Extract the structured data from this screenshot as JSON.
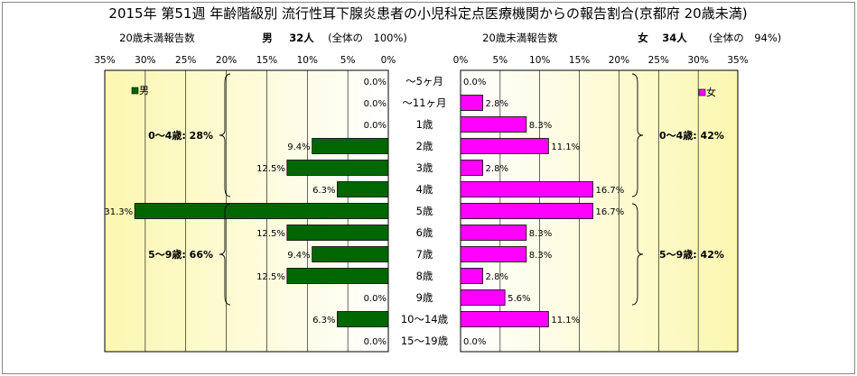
{
  "chart_data": {
    "type": "bar",
    "orientation": "horizontal-butterfly",
    "title": "2015年 第51週 年齢階級別 流行性耳下腺炎患者の小児科定点医療機関からの報告割合(京都府 20歳未満)",
    "categories": [
      "～5ヶ月",
      "～11ヶ月",
      "1歳",
      "2歳",
      "3歳",
      "4歳",
      "5歳",
      "6歳",
      "7歳",
      "8歳",
      "9歳",
      "10～14歳",
      "15～19歳"
    ],
    "xlim": [
      0,
      35
    ],
    "x_ticks": [
      "35%",
      "30%",
      "25%",
      "20%",
      "15%",
      "10%",
      "5%",
      "0%"
    ],
    "x_ticks_right": [
      "0%",
      "5%",
      "10%",
      "15%",
      "20%",
      "25%",
      "30%",
      "35%"
    ],
    "left_panel": {
      "header_label": "20歳未満報告数",
      "header_gender": "男",
      "header_count": "32人",
      "header_share": "(全体の　100%)",
      "legend": "男",
      "color": "#006600",
      "values": [
        0.0,
        0.0,
        0.0,
        9.4,
        12.5,
        6.3,
        31.3,
        12.5,
        9.4,
        12.5,
        0.0,
        6.3,
        0.0
      ],
      "labels": [
        "0.0%",
        "0.0%",
        "0.0%",
        "9.4%",
        "12.5%",
        "6.3%",
        "31.3%",
        "12.5%",
        "9.4%",
        "12.5%",
        "0.0%",
        "6.3%",
        "0.0%"
      ],
      "groups": [
        {
          "label": "0～4歳: 28%",
          "from": 0,
          "to": 5
        },
        {
          "label": "5～9歳: 66%",
          "from": 6,
          "to": 10
        }
      ]
    },
    "right_panel": {
      "header_label": "20歳未満報告数",
      "header_gender": "女",
      "header_count": "34人",
      "header_share": "(全体の　94%)",
      "legend": "女",
      "color": "#ff00ff",
      "values": [
        0.0,
        2.8,
        8.3,
        11.1,
        2.8,
        16.7,
        16.7,
        8.3,
        8.3,
        2.8,
        5.6,
        11.1,
        0.0
      ],
      "labels": [
        "0.0%",
        "2.8%",
        "8.3%",
        "11.1%",
        "2.8%",
        "16.7%",
        "16.7%",
        "8.3%",
        "8.3%",
        "2.8%",
        "5.6%",
        "11.1%",
        "0.0%"
      ],
      "groups": [
        {
          "label": "0～4歳: 42%",
          "from": 0,
          "to": 5
        },
        {
          "label": "5～9歳: 42%",
          "from": 6,
          "to": 10
        }
      ]
    },
    "grid": true
  }
}
